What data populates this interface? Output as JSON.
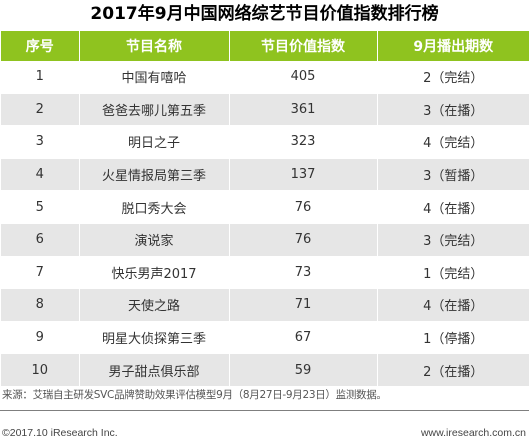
{
  "title": "2017年9月中国网络综艺节目价值指数排行榜",
  "colors": {
    "header_bg": "#8fc31f",
    "header_text": "#ffffff",
    "row_alt_bg": "#e6e6e6"
  },
  "chart_data": {
    "type": "table",
    "title": "2017年9月中国网络综艺节目价值指数排行榜",
    "columns": [
      "序号",
      "节目名称",
      "节目价值指数",
      "9月播出期数"
    ],
    "rows": [
      [
        "1",
        "中国有嘻哈",
        "405",
        "2（完结）"
      ],
      [
        "2",
        "爸爸去哪儿第五季",
        "361",
        "3（在播）"
      ],
      [
        "3",
        "明日之子",
        "323",
        "4（完结）"
      ],
      [
        "4",
        "火星情报局第三季",
        "137",
        "3（暂播）"
      ],
      [
        "5",
        "脱口秀大会",
        "76",
        "4（在播）"
      ],
      [
        "6",
        "演说家",
        "76",
        "3（完结）"
      ],
      [
        "7",
        "快乐男声2017",
        "73",
        "1（完结）"
      ],
      [
        "8",
        "天使之路",
        "71",
        "4（在播）"
      ],
      [
        "9",
        "明星大侦探第三季",
        "67",
        "1（停播）"
      ],
      [
        "10",
        "男子甜点俱乐部",
        "59",
        "2（在播）"
      ]
    ]
  },
  "source_note": "来源：艾瑞自主研发SVC品牌赞助效果评估模型9月（8月27日-9月23日）监测数据。",
  "footer": {
    "copyright": "©2017.10 iResearch Inc.",
    "website": "www.iresearch.com.cn"
  }
}
